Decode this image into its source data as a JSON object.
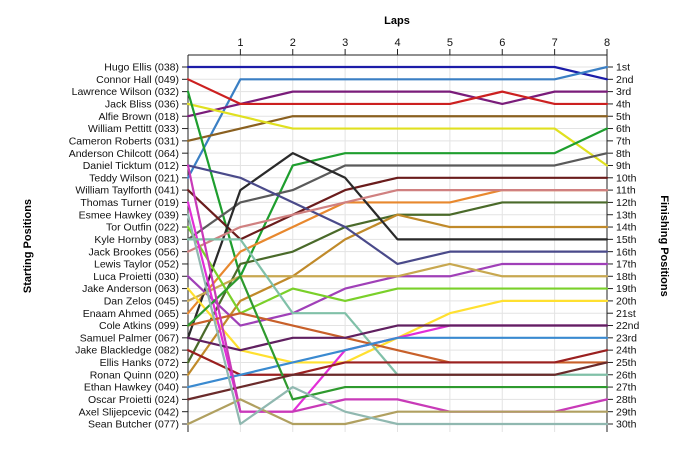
{
  "chart_data": {
    "type": "line",
    "title": "",
    "x_axis_title": "Laps",
    "left_axis_title": "Starting Positions",
    "right_axis_title": "Finishing Positions",
    "laps": [
      1,
      2,
      3,
      4,
      5,
      6,
      7,
      8
    ],
    "x_range": [
      0,
      8
    ],
    "position_range": [
      1,
      30
    ],
    "starting_labels": [
      "Hugo Ellis (038)",
      "Connor Hall (049)",
      "Lawrence Wilson (032)",
      "Jack Bliss (036)",
      "Alfie Brown (018)",
      "William Pettitt (033)",
      "Cameron Roberts (031)",
      "Anderson Chilcott (064)",
      "Daniel Ticktum (012)",
      "Teddy Wilson (021)",
      "William Taylforth (041)",
      "Thomas Turner (019)",
      "Esmee Hawkey (039)",
      "Tor Outfin (022)",
      "Kyle Hornby (083)",
      "Jack Brookes (056)",
      "Lewis Taylor (052)",
      "Luca Proietti (030)",
      "Jake Anderson (063)",
      "Dan Zelos (045)",
      "Enaam Ahmed (065)",
      "Cole Atkins (099)",
      "Samuel Palmer (067)",
      "Jake Blackledge (082)",
      "Ellis Hanks (072)",
      "Ronan Quinn (020)",
      "Ethan Hawkey (040)",
      "Oscar Proietti (024)",
      "Axel Slijepcevic (042)",
      "Sean Butcher (077)"
    ],
    "finishing_labels": [
      "1st",
      "2nd",
      "3rd",
      "4th",
      "5th",
      "6th",
      "7th",
      "8th",
      "9th",
      "10th",
      "11th",
      "12th",
      "13th",
      "14th",
      "15th",
      "16th",
      "17th",
      "18th",
      "19th",
      "20th",
      "21st",
      "22nd",
      "23rd",
      "24th",
      "25th",
      "26th",
      "27th",
      "28th",
      "29th",
      "30th"
    ],
    "grid": true,
    "series": [
      {
        "color": "#1c1ca8",
        "positions": [
          1,
          1,
          1,
          1,
          1,
          1,
          1,
          1,
          2
        ]
      },
      {
        "color": "#3a7fc4",
        "positions": [
          10,
          2,
          2,
          2,
          2,
          2,
          2,
          2,
          1
        ]
      },
      {
        "color": "#7a1c7a",
        "positions": [
          5,
          4,
          3,
          3,
          3,
          3,
          4,
          3,
          3
        ]
      },
      {
        "color": "#cc2020",
        "positions": [
          2,
          4,
          4,
          4,
          4,
          4,
          3,
          4,
          4
        ]
      },
      {
        "color": "#8a6020",
        "positions": [
          7,
          6,
          5,
          5,
          5,
          5,
          5,
          5,
          5
        ]
      },
      {
        "color": "#e0e020",
        "positions": [
          4,
          5,
          6,
          6,
          6,
          6,
          6,
          6,
          9
        ]
      },
      {
        "color": "#1e9e2e",
        "positions": [
          3,
          18,
          9,
          8,
          8,
          8,
          8,
          8,
          6
        ]
      },
      {
        "color": "#5a5a5a",
        "positions": [
          15,
          12,
          11,
          9,
          9,
          9,
          9,
          9,
          8
        ]
      },
      {
        "color": "#4a6a2a",
        "positions": [
          25,
          17,
          16,
          14,
          13,
          13,
          12,
          12,
          12
        ]
      },
      {
        "color": "#e8882e",
        "positions": [
          21,
          16,
          14,
          12,
          12,
          12,
          11,
          11,
          11
        ]
      },
      {
        "color": "#6a1c1c",
        "positions": [
          11,
          15,
          13,
          11,
          10,
          10,
          10,
          10,
          10
        ]
      },
      {
        "color": "#c08a2a",
        "positions": [
          26,
          20,
          18,
          15,
          13,
          14,
          14,
          14,
          14
        ]
      },
      {
        "color": "#2a2a2a",
        "positions": [
          23,
          11,
          8,
          10,
          15,
          15,
          15,
          15,
          15
        ]
      },
      {
        "color": "#4a4a8a",
        "positions": [
          9,
          10,
          12,
          14,
          17,
          16,
          16,
          16,
          16
        ]
      },
      {
        "color": "#d08080",
        "positions": [
          16,
          14,
          13,
          12,
          11,
          11,
          11,
          11,
          11
        ]
      },
      {
        "color": "#a040b8",
        "positions": [
          18,
          22,
          21,
          19,
          18,
          18,
          17,
          17,
          17
        ]
      },
      {
        "color": "#c8a850",
        "positions": [
          20,
          18,
          18,
          18,
          18,
          17,
          18,
          18,
          18
        ]
      },
      {
        "color": "#7ad02a",
        "positions": [
          14,
          21,
          19,
          20,
          19,
          19,
          19,
          19,
          19
        ]
      },
      {
        "color": "#ffe030",
        "positions": [
          19,
          24,
          25,
          25,
          23,
          21,
          20,
          20,
          20
        ]
      },
      {
        "color": "#e22ed8",
        "positions": [
          12,
          29,
          29,
          24,
          23,
          22,
          22,
          22,
          22
        ]
      },
      {
        "color": "#80c0a8",
        "positions": [
          15,
          15,
          21,
          21,
          26,
          26,
          26,
          26,
          26
        ]
      },
      {
        "color": "#c8602a",
        "positions": [
          22,
          21,
          22,
          23,
          24,
          25,
          25,
          25,
          25
        ]
      },
      {
        "color": "#602060",
        "positions": [
          23,
          24,
          23,
          23,
          22,
          22,
          22,
          22,
          22
        ]
      },
      {
        "color": "#9a2020",
        "positions": [
          24,
          26,
          26,
          25,
          25,
          25,
          25,
          25,
          24
        ]
      },
      {
        "color": "#3a8ad0",
        "positions": [
          27,
          26,
          25,
          24,
          23,
          23,
          23,
          23,
          23
        ]
      },
      {
        "color": "#2e9a2e",
        "positions": [
          22,
          18,
          28,
          27,
          27,
          27,
          27,
          27,
          27
        ]
      },
      {
        "color": "#6a2a2a",
        "positions": [
          28,
          27,
          26,
          26,
          26,
          26,
          26,
          26,
          25
        ]
      },
      {
        "color": "#c83ab8",
        "positions": [
          9,
          29,
          29,
          28,
          28,
          29,
          29,
          29,
          28
        ]
      },
      {
        "color": "#b0a060",
        "positions": [
          30,
          28,
          30,
          30,
          29,
          29,
          29,
          29,
          29
        ]
      },
      {
        "color": "#90b8b0",
        "positions": [
          13,
          30,
          27,
          29,
          30,
          30,
          30,
          30,
          30
        ]
      }
    ]
  }
}
